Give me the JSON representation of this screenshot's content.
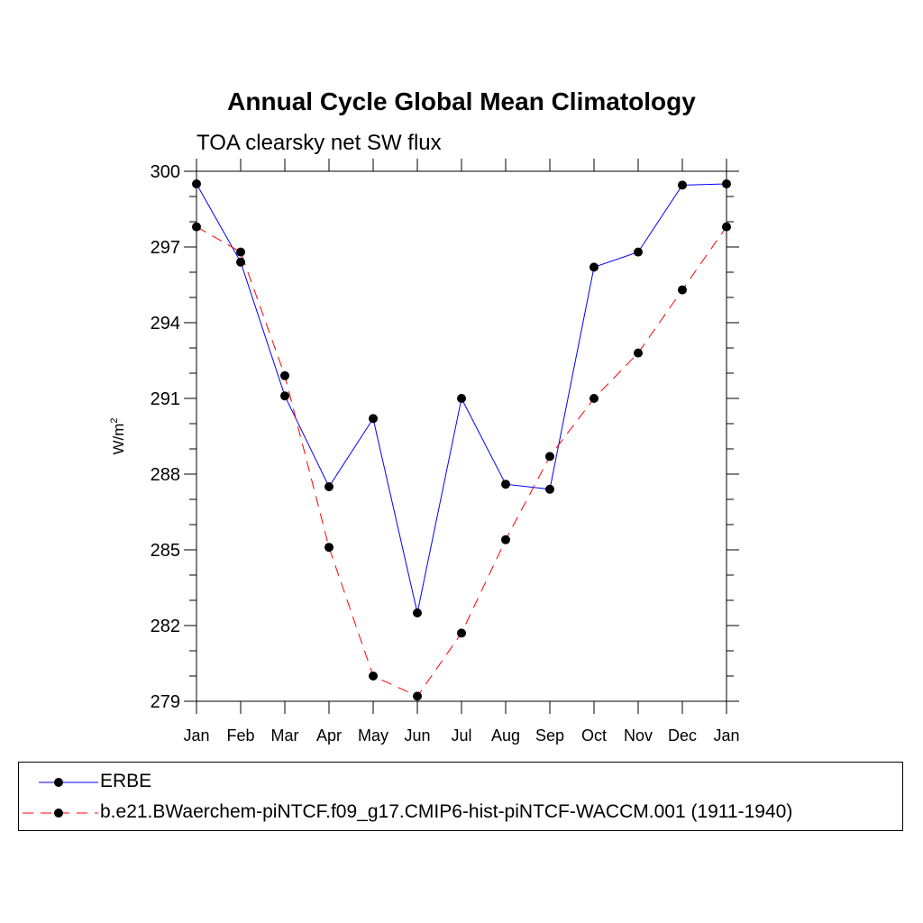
{
  "chart_data": {
    "type": "line",
    "title": "Annual Cycle Global Mean Climatology",
    "subtitle": "TOA clearsky net SW flux",
    "ylabel": "W/m",
    "ylabel_superscript": "2",
    "xlabel": "",
    "categories": [
      "Jan",
      "Feb",
      "Mar",
      "Apr",
      "May",
      "Jun",
      "Jul",
      "Aug",
      "Sep",
      "Oct",
      "Nov",
      "Dec",
      "Jan"
    ],
    "ylim": [
      279,
      300
    ],
    "yticks": [
      279,
      282,
      285,
      288,
      291,
      294,
      297,
      300
    ],
    "y_minor_step": 1,
    "series": [
      {
        "name": "ERBE",
        "color": "#0000ff",
        "dash": "solid",
        "values": [
          299.5,
          296.4,
          291.1,
          287.5,
          290.2,
          282.5,
          291.0,
          287.6,
          287.4,
          296.2,
          296.8,
          299.45,
          299.5
        ]
      },
      {
        "name": "b.e21.BWaerchem-piNTCF.f09_g17.CMIP6-hist-piNTCF-WACCM.001 (1911-1940)",
        "color": "#ff0000",
        "dash": "dashed",
        "values": [
          297.8,
          296.8,
          291.9,
          285.1,
          280.0,
          279.2,
          281.7,
          285.4,
          288.7,
          291.0,
          292.8,
          295.3,
          297.8
        ]
      }
    ],
    "marker_color": "#000000",
    "legend_position": "bottom"
  }
}
